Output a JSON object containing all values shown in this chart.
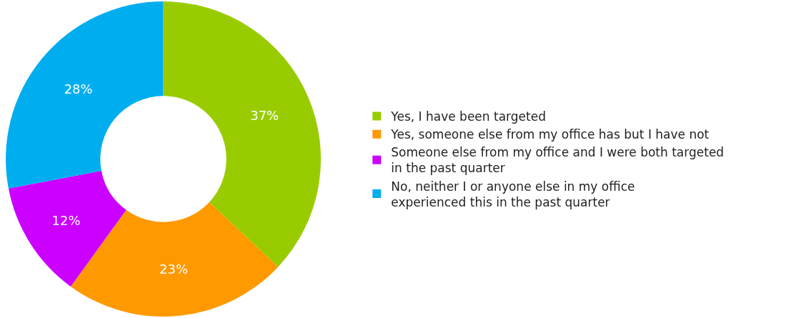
{
  "chart_data": {
    "type": "donut",
    "categories": [
      "Yes, I have been targeted",
      "Yes, someone else from my office has but I have not",
      "Someone else from my office and I were both targeted in the past quarter",
      "No, neither I or anyone else in my office experienced this in the past quarter"
    ],
    "values": [
      37,
      23,
      12,
      28
    ],
    "colors": [
      "#99cc00",
      "#ff9900",
      "#cc00ff",
      "#00aeef"
    ],
    "value_labels": [
      "37%",
      "23%",
      "12%",
      "28%"
    ],
    "legend": "right"
  }
}
